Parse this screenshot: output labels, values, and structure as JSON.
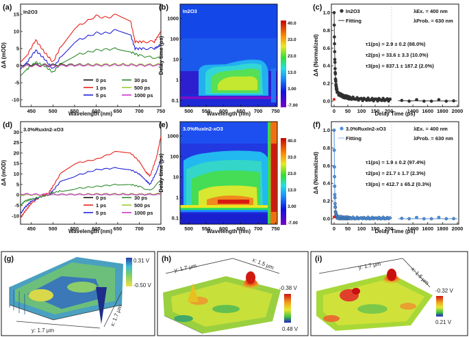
{
  "chart_data": [
    {
      "panel": "(a)",
      "type": "line",
      "sample": "In2O3",
      "xlabel": "Wavelength (nm)",
      "ylabel": "ΔA (mOD)",
      "xlim": [
        425,
        750
      ],
      "ylim": [
        -12,
        18
      ],
      "xticks": [
        450,
        500,
        550,
        600,
        650,
        700,
        750
      ],
      "yticks": [
        -10,
        -5,
        0,
        5,
        10,
        15
      ],
      "series": [
        {
          "name": "0 ps",
          "color": "#111111",
          "x": [
            425,
            450,
            475,
            500,
            550,
            600,
            650,
            700,
            750
          ],
          "y": [
            0.3,
            0.3,
            0.2,
            0.2,
            0.3,
            0.3,
            0.3,
            0.2,
            0.2
          ]
        },
        {
          "name": "1 ps",
          "color": "#e8201a",
          "x": [
            425,
            440,
            460,
            480,
            500,
            520,
            550,
            600,
            625,
            650,
            680,
            690,
            710,
            735,
            750
          ],
          "y": [
            1,
            3,
            7.5,
            4,
            1,
            6,
            11,
            14.5,
            14,
            15,
            13,
            7,
            7,
            7,
            10
          ]
        },
        {
          "name": "5 ps",
          "color": "#2020d8",
          "x": [
            425,
            440,
            460,
            480,
            500,
            520,
            550,
            600,
            625,
            650,
            680,
            690,
            710,
            735,
            750
          ],
          "y": [
            -1,
            1,
            4.5,
            2,
            -1,
            3,
            7,
            9.5,
            9.5,
            10.5,
            9,
            5,
            5,
            5,
            6
          ]
        },
        {
          "name": "30 ps",
          "color": "#2e8b2e",
          "x": [
            425,
            440,
            460,
            480,
            500,
            520,
            550,
            600,
            650,
            680,
            700,
            750
          ],
          "y": [
            -3,
            -1,
            1,
            0,
            -2,
            1,
            3,
            4.5,
            5,
            4,
            3,
            2
          ]
        },
        {
          "name": "500 ps",
          "color": "#99cc33",
          "x": [
            425,
            450,
            475,
            500,
            550,
            600,
            650,
            700,
            750
          ],
          "y": [
            -0.3,
            0,
            0.1,
            0,
            0.2,
            0.3,
            0.4,
            0.3,
            0.3
          ]
        },
        {
          "name": "1000 ps",
          "color": "#cc33cc",
          "x": [
            425,
            450,
            475,
            500,
            550,
            600,
            650,
            700,
            750
          ],
          "y": [
            -0.1,
            0,
            0,
            -0.1,
            0.1,
            0.1,
            0.2,
            0.1,
            0.1
          ]
        }
      ]
    },
    {
      "panel": "(b)",
      "type": "heatmap",
      "sample": "In2O3",
      "xlabel": "Wavelength (nm)",
      "ylabel": "Delay time (ps)",
      "xticks": [
        500,
        550,
        600,
        650,
        700,
        750
      ],
      "yticks": [
        "0.1",
        "1",
        "10",
        "100",
        "1000"
      ],
      "colorbar_ticks": [
        "40.0",
        "33.0",
        "23.0",
        "13.0",
        "3.00",
        "-7.00"
      ]
    },
    {
      "panel": "(c)",
      "type": "scatter",
      "sample": "In2O3",
      "xlabel": "Delay Time (ps)",
      "ylabel": "ΔA (Normalized)",
      "xticks": [
        "0",
        "50",
        "100",
        "150",
        "200",
        "1400",
        "1600",
        "1800",
        "2000"
      ],
      "yticks": [
        "0.0",
        "0.2",
        "0.4",
        "0.6",
        "0.8",
        "1.0"
      ],
      "legend": [
        "In2O3",
        "Fitting"
      ],
      "excitation": "λEx. = 400 nm",
      "probe": "λProb. = 630 nm",
      "fit_params": [
        "τ1(ps) = 2.9 ± 0.2 (88.0%)",
        "τ2(ps) = 33.6 ± 3.3 (10.0%)",
        "τ3(ps) = 837.1 ± 187.2 (2.0%)"
      ],
      "tau_ps": [
        2.9,
        33.6,
        837.1
      ],
      "amp": [
        0.88,
        0.1,
        0.02
      ],
      "color": "#333333"
    },
    {
      "panel": "(d)",
      "type": "line",
      "sample": "3.0%RuxIn2-xO3",
      "xlabel": "Wavelength (nm)",
      "ylabel": "ΔA (mOD)",
      "xlim": [
        425,
        750
      ],
      "ylim": [
        -14,
        35
      ],
      "xticks": [
        450,
        500,
        550,
        600,
        650,
        700,
        750
      ],
      "yticks": [
        -10,
        -5,
        0,
        5,
        10,
        15,
        20,
        25,
        30
      ],
      "series": [
        {
          "name": "0 ps",
          "color": "#111111",
          "x": [
            425,
            450,
            475,
            500,
            550,
            600,
            650,
            700,
            750
          ],
          "y": [
            0,
            0.2,
            0.2,
            0.2,
            0.3,
            0.3,
            0.3,
            0.2,
            0.3
          ]
        },
        {
          "name": "1 ps",
          "color": "#e8201a",
          "x": [
            425,
            435,
            450,
            470,
            490,
            500,
            520,
            550,
            600,
            650,
            680,
            700,
            715,
            725,
            740,
            750
          ],
          "y": [
            -11,
            -8,
            -4,
            -1,
            1,
            4,
            11,
            15,
            17,
            21,
            20,
            16,
            11,
            9,
            18,
            28
          ]
        },
        {
          "name": "5 ps",
          "color": "#2020d8",
          "x": [
            425,
            435,
            450,
            470,
            490,
            500,
            520,
            550,
            600,
            650,
            680,
            700,
            715,
            725,
            740,
            750
          ],
          "y": [
            -9,
            -6,
            -3,
            -1,
            0,
            2,
            7,
            9,
            12,
            13,
            12,
            10,
            7,
            5,
            11,
            17
          ]
        },
        {
          "name": "30 ps",
          "color": "#2e8b2e",
          "x": [
            425,
            435,
            450,
            470,
            490,
            500,
            520,
            550,
            600,
            650,
            680,
            700,
            725,
            750
          ],
          "y": [
            -5,
            -3,
            -2,
            -1,
            0,
            1,
            2,
            3,
            4,
            5,
            5,
            4,
            2,
            7
          ]
        },
        {
          "name": "500 ps",
          "color": "#99cc33",
          "x": [
            425,
            450,
            475,
            500,
            550,
            600,
            650,
            700,
            750
          ],
          "y": [
            0,
            0.1,
            0.1,
            0.2,
            0.3,
            0.5,
            0.5,
            0.4,
            0.6
          ]
        },
        {
          "name": "1000 ps",
          "color": "#cc33cc",
          "x": [
            425,
            450,
            475,
            500,
            550,
            600,
            650,
            700,
            750
          ],
          "y": [
            0.5,
            0.3,
            0.2,
            0.2,
            0.2,
            0.3,
            0.3,
            0.2,
            0.3
          ]
        }
      ]
    },
    {
      "panel": "(e)",
      "type": "heatmap",
      "sample": "3.0%RuxIn2-xO3",
      "xlabel": "Wavelength (nm)",
      "ylabel": "Delay time (ps)",
      "xticks": [
        500,
        550,
        600,
        650,
        700,
        750
      ],
      "yticks": [
        "0.1",
        "1",
        "10",
        "100",
        "1000"
      ],
      "colorbar_ticks": [
        "40.0",
        "33.0",
        "23.0",
        "13.0",
        "3.00",
        "-7.00"
      ]
    },
    {
      "panel": "(f)",
      "type": "scatter",
      "sample": "3.0%RuxIn2-xO3",
      "xlabel": "Delay Time (ps)",
      "ylabel": "ΔA (Normalized)",
      "xticks": [
        "0",
        "50",
        "100",
        "150",
        "200",
        "1400",
        "1600",
        "1800",
        "2000"
      ],
      "yticks": [
        "0.0",
        "0.2",
        "0.4",
        "0.6",
        "0.8",
        "1.0"
      ],
      "legend": [
        "3.0%RuxIn2-xO3",
        "Fitting"
      ],
      "excitation": "λEx. = 400 nm",
      "probe": "λProb. = 630 nm",
      "fit_params": [
        "τ1(ps) = 1.9 ± 0.2 (97.4%)",
        "τ2(ps) = 21.7 ± 1.7 (2.3%)",
        "τ3(ps) = 412.7 ± 65.2 (0.3%)"
      ],
      "tau_ps": [
        1.9,
        21.7,
        412.7
      ],
      "amp": [
        0.974,
        0.023,
        0.003
      ],
      "color": "#4a90e2"
    },
    {
      "panel": "(g)",
      "type": "surface",
      "axis_labels": [
        "y: 1.7 μm",
        "x: 1.7 μm"
      ],
      "colorbar": [
        "0.31 V",
        "-0.50 V"
      ]
    },
    {
      "panel": "(h)",
      "type": "surface",
      "axis_labels": [
        "y: 1.7 μm",
        "x: 1.5 μm"
      ],
      "colorbar": [
        "-0.38 V",
        "0.48 V"
      ]
    },
    {
      "panel": "(i)",
      "type": "surface",
      "axis_labels": [
        "y: 1.7 μm",
        "x: 1.5 μm"
      ],
      "colorbar": [
        "-0.32 V",
        "0.21 V"
      ]
    }
  ]
}
